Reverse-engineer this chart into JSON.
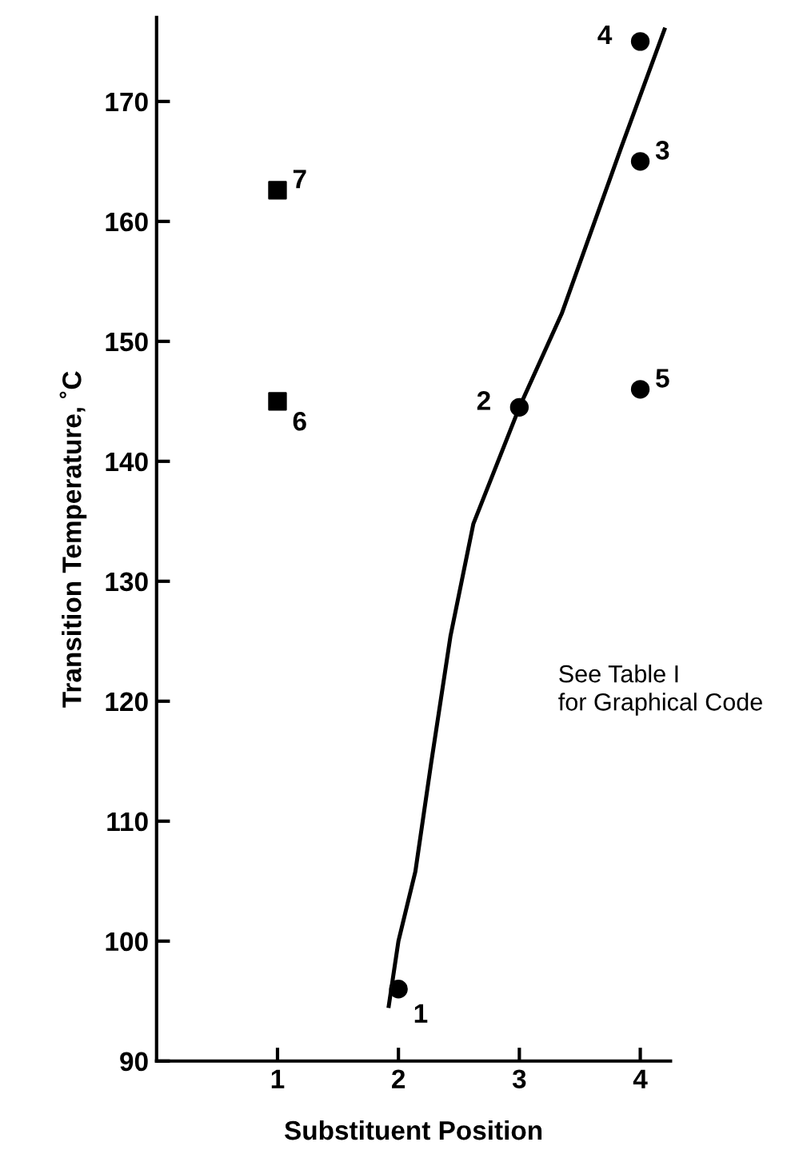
{
  "chart_data": {
    "type": "scatter",
    "xlabel": "Substituent Position",
    "ylabel": "Transition Temperature, ˚C",
    "xlim": [
      0,
      4.25
    ],
    "ylim": [
      90,
      177
    ],
    "xticks": [
      1,
      2,
      3,
      4
    ],
    "yticks": [
      90,
      100,
      110,
      120,
      130,
      140,
      150,
      160,
      170
    ],
    "grid": false,
    "legend": false,
    "series": [
      {
        "marker": "circle",
        "color": "#000000",
        "x": [
          2,
          3,
          4,
          4,
          4
        ],
        "values": [
          96,
          144.5,
          165,
          175,
          146
        ]
      },
      {
        "marker": "square",
        "color": "#000000",
        "x": [
          1,
          1
        ],
        "values": [
          145,
          162.6
        ]
      },
      {
        "type": "line",
        "marker": "none",
        "line_style": "solid",
        "color": "#000000",
        "x": [
          1.92,
          2.0,
          2.14,
          2.27,
          2.43,
          2.62,
          3.0,
          3.35,
          3.84,
          4.2
        ],
        "values": [
          94.6,
          100,
          105.8,
          114.8,
          125.4,
          134.8,
          144.5,
          152.3,
          166.1,
          176
        ]
      }
    ],
    "annotations": [
      {
        "text": "1",
        "x": 2,
        "y": 96
      },
      {
        "text": "2",
        "x": 3,
        "y": 144.5
      },
      {
        "text": "3",
        "x": 4,
        "y": 165
      },
      {
        "text": "4",
        "x": 4,
        "y": 175
      },
      {
        "text": "5",
        "x": 4,
        "y": 146
      },
      {
        "text": "6",
        "x": 1,
        "y": 145
      },
      {
        "text": "7",
        "x": 1,
        "y": 162.6
      },
      "See Table I\nfor Graphical Code"
    ]
  }
}
